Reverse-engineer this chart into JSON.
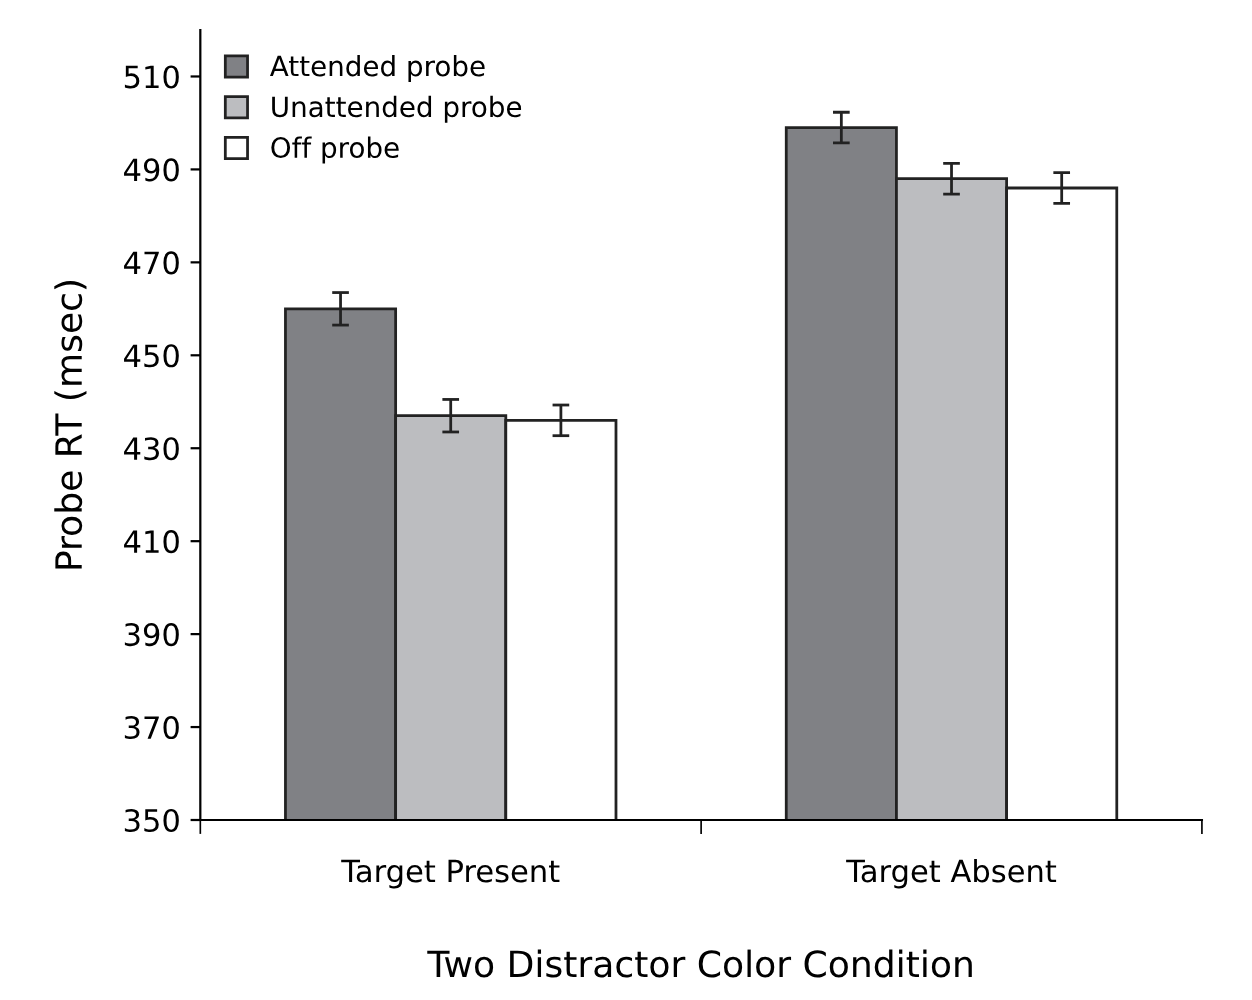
{
  "chart_data": {
    "type": "bar",
    "xlabel": "Two Distractor Color Condition",
    "ylabel": "Probe RT (msec)",
    "categories": [
      "Target Present",
      "Target Absent"
    ],
    "series": [
      {
        "name": "Attended probe",
        "color": "#808185",
        "values": [
          460,
          499
        ],
        "errors": [
          3.5,
          3.3
        ]
      },
      {
        "name": "Unattended probe",
        "color": "#bcbdc0",
        "values": [
          437,
          488
        ],
        "errors": [
          3.5,
          3.3
        ]
      },
      {
        "name": "Off probe",
        "color": "#ffffff",
        "values": [
          436,
          486
        ],
        "errors": [
          3.3,
          3.3
        ]
      }
    ],
    "ylim": [
      350,
      520
    ],
    "yticks": [
      350,
      370,
      390,
      410,
      430,
      450,
      470,
      490,
      510
    ],
    "grid": false,
    "legend": "top left"
  }
}
